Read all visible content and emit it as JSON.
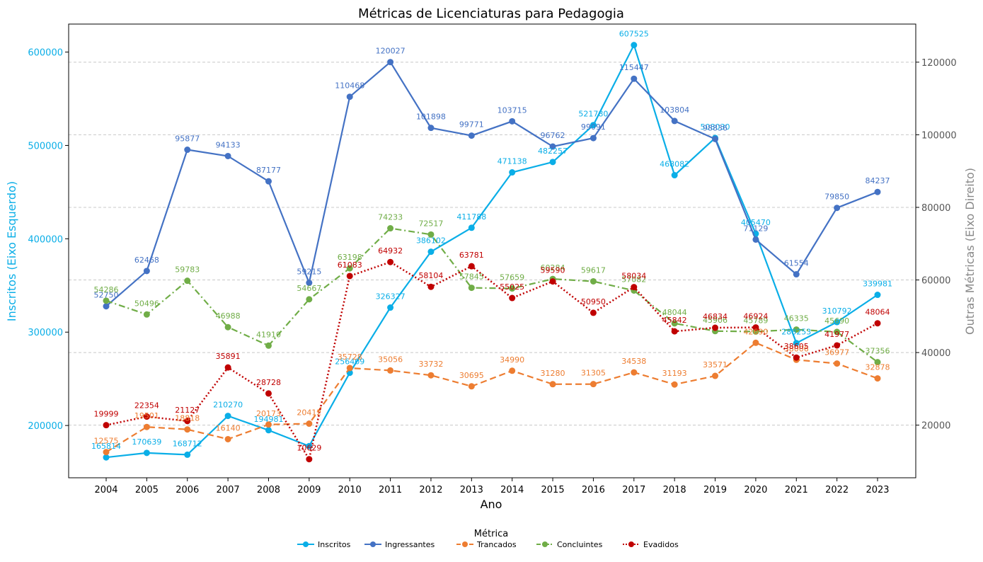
{
  "chart_data": {
    "type": "line",
    "title": "Métricas de Licenciaturas para Pedagogia",
    "xlabel": "Ano",
    "ylabel_left": "Inscritos (Eixo Esquerdo)",
    "ylabel_right": "Outras Métricas (Eixo Direito)",
    "x": [
      "2004",
      "2005",
      "2006",
      "2007",
      "2008",
      "2009",
      "2010",
      "2011",
      "2012",
      "2013",
      "2014",
      "2015",
      "2016",
      "2017",
      "2018",
      "2019",
      "2020",
      "2021",
      "2022",
      "2023"
    ],
    "ylim_left": [
      144000,
      630000
    ],
    "yticks_left": [
      "200000",
      "300000",
      "400000",
      "500000",
      "600000"
    ],
    "ylim_right": [
      5500,
      130500
    ],
    "yticks_right": [
      "20000",
      "40000",
      "60000",
      "80000",
      "100000",
      "120000"
    ],
    "grid": "horizontal dashed (right axis)",
    "legend": {
      "title": "Métrica",
      "placement": "bottom-center"
    },
    "series": [
      {
        "name": "Inscritos",
        "axis": "left",
        "color": "#0aaee7",
        "style": "solid",
        "values": [
          165814,
          170639,
          168712,
          210270,
          194981,
          177900,
          256409,
          326327,
          386102,
          411788,
          471138,
          482257,
          521780,
          607525,
          468082,
          508030,
          405470,
          288253,
          310792,
          339981
        ],
        "labels": [
          "165814",
          "170639",
          "168712",
          "210270",
          "194981",
          "",
          "256409",
          "326327",
          "386102",
          "411788",
          "471138",
          "482257",
          "521780",
          "607525",
          "468082",
          "508030",
          "405470",
          "288253",
          "310792",
          "339981"
        ]
      },
      {
        "name": "Ingressantes",
        "axis": "right",
        "color": "#4472c4",
        "style": "solid",
        "values": [
          52750,
          62468,
          95877,
          94133,
          87177,
          59215,
          110468,
          120027,
          101898,
          99771,
          103715,
          96762,
          99091,
          115447,
          103804,
          98836,
          71129,
          61554,
          79850,
          84237
        ],
        "labels": [
          "52750",
          "62468",
          "95877",
          "94133",
          "87177",
          "59215",
          "110468",
          "120027",
          "101898",
          "99771",
          "103715",
          "96762",
          "99091",
          "115447",
          "103804",
          "98836",
          "71129",
          "61554",
          "79850",
          "84237"
        ]
      },
      {
        "name": "Trancados",
        "axis": "right",
        "color": "#ed7d31",
        "style": "dashed",
        "values": [
          12575,
          19501,
          18818,
          16140,
          20173,
          20412,
          35728,
          35056,
          33732,
          30695,
          34990,
          31280,
          31305,
          34538,
          31193,
          33571,
          42690,
          38006,
          36977,
          32878
        ],
        "labels": [
          "12575",
          "19501",
          "18818",
          "16140",
          "20173",
          "20412",
          "35728",
          "35056",
          "33732",
          "30695",
          "34990",
          "31280",
          "31305",
          "34538",
          "31193",
          "33571",
          "42690",
          "38006",
          "36977",
          "32878"
        ]
      },
      {
        "name": "Concluintes",
        "axis": "right",
        "color": "#70ad47",
        "style": "dashdot",
        "values": [
          54286,
          50496,
          59783,
          46988,
          41910,
          54667,
          63198,
          74233,
          72517,
          57845,
          57659,
          60284,
          59617,
          57082,
          48044,
          45906,
          45789,
          46335,
          45690,
          37356
        ],
        "labels": [
          "54286",
          "50496",
          "59783",
          "46988",
          "41910",
          "54667",
          "63198",
          "74233",
          "72517",
          "57845",
          "57659",
          "60284",
          "59617",
          "57082",
          "48044",
          "45906",
          "45789",
          "46335",
          "45690",
          "37356"
        ]
      },
      {
        "name": "Evadidos",
        "axis": "right",
        "color": "#c00000",
        "style": "dotted",
        "values": [
          19999,
          22354,
          21127,
          35891,
          28728,
          10629,
          61083,
          64932,
          58104,
          63781,
          55025,
          59590,
          50950,
          58034,
          45842,
          46834,
          46924,
          38605,
          41977,
          48064
        ],
        "labels": [
          "19999",
          "22354",
          "21127",
          "35891",
          "28728",
          "10629",
          "61083",
          "64932",
          "58104",
          "63781",
          "55025",
          "59590",
          "50950",
          "58034",
          "45842",
          "46834",
          "46924",
          "38605",
          "41977",
          "48064"
        ]
      }
    ]
  }
}
